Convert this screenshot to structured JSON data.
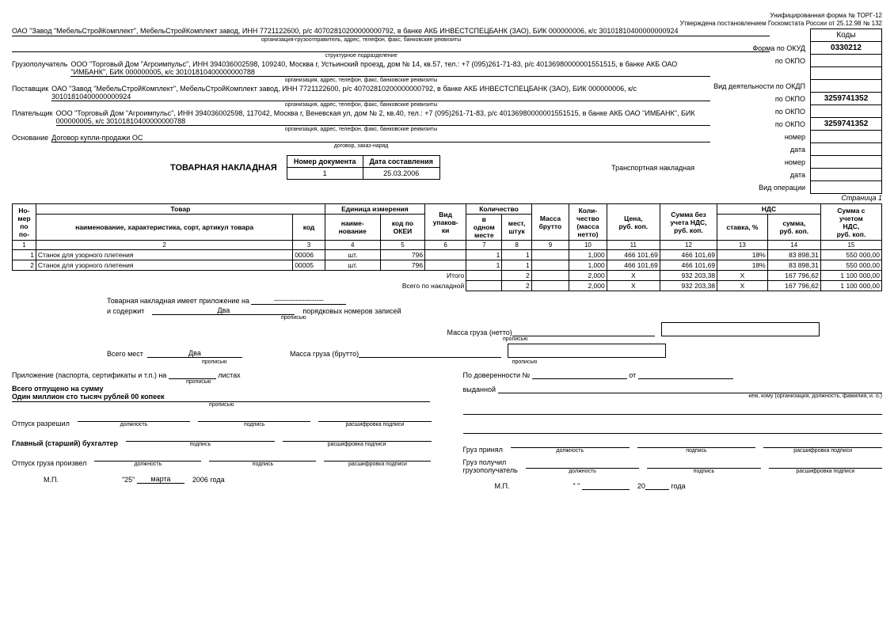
{
  "top_notes": {
    "line1": "Унифицированная форма № ТОРГ-12",
    "line2": "Утверждена постановлением Госкомстата России от 25.12.98 № 132"
  },
  "codes": {
    "header": "Коды",
    "okud_label": "Форма по ОКУД",
    "okud": "0330212",
    "okpo1_label": "по ОКПО",
    "okpo1": "",
    "okdp_label": "Вид деятельности по ОКДП",
    "okdp": "",
    "okpo2_label": "по ОКПО",
    "okpo2": "3259741352",
    "okpo3_label": "по ОКПО",
    "okpo3": "",
    "okpo4_label": "по ОКПО",
    "okpo4": "3259741352",
    "nomer_label": "номер",
    "data_label": "дата",
    "vid_op_label": "Вид операции"
  },
  "sender": {
    "value": "ОАО \"Завод \"МебельСтройКомплект\", МебельСтройКомплект завод, ИНН 7721122600, р/с 40702810200000000792, в банке АКБ ИНВЕСТСПЕЦБАНК (ЗАО), БИК 000000006, к/с 30101810400000000924",
    "sub": "организация-грузоотправитель, адрес, телефон, факс, банковские реквизиты"
  },
  "struct_unit_sub": "структурное подразделение",
  "consignee": {
    "label": "Грузополучатель",
    "value": "ООО \"Торговый Дом \"Агроимпульс\", ИНН 394036002598, 109240, Москва г, Устьинский проезд, дом № 14, кв.57, тел.: +7 (095)261-71-83, р/с 40136980000001551515, в банке АКБ ОАО \"ИМБАНК\", БИК 000000005, к/с 30101810400000000788",
    "sub": "организация, адрес, телефон, факс, банковские реквизиты"
  },
  "supplier": {
    "label": "Поставщик",
    "value": "ОАО \"Завод \"МебельСтройКомплект\", МебельСтройКомплект завод, ИНН 7721122600, р/с 40702810200000000792, в банке АКБ ИНВЕСТСПЕЦБАНК (ЗАО), БИК 000000006, к/с 30101810400000000924",
    "sub": "организация, адрес, телефон, факс, банковские реквизиты"
  },
  "payer": {
    "label": "Плательщик",
    "value": "ООО \"Торговый Дом \"Агроимпульс\", ИНН 394036002598, 117042, Москва г, Веневская ул, дом № 2, кв.40, тел.: +7 (095)261-71-83, р/с 40136980000001551515, в банке АКБ ОАО \"ИМБАНК\", БИК 000000005, к/с 30101810400000000788",
    "sub": "организация, адрес, телефон, факс, банковские реквизиты"
  },
  "basis": {
    "label": "Основание",
    "value": "Договор купли-продажи ОС",
    "sub": "договор, заказ-наряд"
  },
  "doc_title": "ТОВАРНАЯ НАКЛАДНАЯ",
  "doc_num_header": "Номер документа",
  "doc_date_header": "Дата составления",
  "doc_num": "1",
  "doc_date": "25.03.2006",
  "transport_label": "Транспортная накладная",
  "page": "Страница 1",
  "table_headers": {
    "num": "Но-\nмер\nпо\nпо-",
    "tovar": "Товар",
    "name": "наименование, характеристика, сорт, артикул товара",
    "kod": "код",
    "unit": "Единица измерения",
    "unit_name": "наиме-\nнование",
    "okei": "код по\nОКЕИ",
    "vid_upak": "Вид\nупаков-\nки",
    "qty": "Количество",
    "in_one": "в\nодном\nместе",
    "mest": "мест,\nштук",
    "mass_brutto": "Масса\nбрутто",
    "qty_netto": "Коли-\nчество\n(масса\nнетто)",
    "price": "Цена,\nруб. коп.",
    "sum_no_vat": "Сумма без\nучета НДС,\nруб. коп.",
    "vat": "НДС",
    "vat_rate": "ставка, %",
    "vat_sum": "сумма,\nруб. коп.",
    "sum_vat": "Сумма с\nучетом\nНДС,\nруб. коп."
  },
  "col_nums": [
    "1",
    "2",
    "3",
    "4",
    "5",
    "6",
    "7",
    "8",
    "9",
    "10",
    "11",
    "12",
    "13",
    "14",
    "15"
  ],
  "rows": [
    {
      "n": "1",
      "name": "Станок для узорного плетения",
      "kod": "00006",
      "unit": "шт.",
      "okei": "796",
      "vid": "",
      "in_one": "1",
      "mest": "1",
      "brutto": "",
      "netto": "1,000",
      "price": "466 101,69",
      "sum_no_vat": "466 101,69",
      "rate": "18%",
      "vat_sum": "83 898,31",
      "total": "550 000,00"
    },
    {
      "n": "2",
      "name": "Станок для узорного плетения",
      "kod": "00005",
      "unit": "шт.",
      "okei": "796",
      "vid": "",
      "in_one": "1",
      "mest": "1",
      "brutto": "",
      "netto": "1,000",
      "price": "466 101,69",
      "sum_no_vat": "466 101,69",
      "rate": "18%",
      "vat_sum": "83 898,31",
      "total": "550 000,00"
    }
  ],
  "totals": {
    "itogo_label": "Итого",
    "itogo": {
      "mest": "2",
      "netto": "2,000",
      "price": "X",
      "sum_no_vat": "932 203,38",
      "rate": "X",
      "vat_sum": "167 796,62",
      "total": "1 100 000,00"
    },
    "vsego_label": "Всего по накладной",
    "vsego": {
      "mest": "2",
      "netto": "2,000",
      "price": "X",
      "sum_no_vat": "932 203,38",
      "rate": "X",
      "vat_sum": "167 796,62",
      "total": "1 100 000,00"
    }
  },
  "bottom": {
    "attach_label": "Товарная накладная имеет приложение на",
    "attach_val": "---------------------",
    "contains_label": "и содержит",
    "contains_val": "Два",
    "contains_suffix": "порядковых номеров записей",
    "propis": "прописью",
    "mass_netto": "Масса груза (нетто)",
    "mass_brutto": "Масса груза (брутто)",
    "vsego_mest_label": "Всего мест",
    "vsego_mest_val": "Два",
    "app_label": "Приложение (паспорта, сертификаты и т.п.) на",
    "app_suffix": "листах",
    "total_label": "Всего отпущено на сумму",
    "total_words": "Один миллион сто тысяч рублей 00 копеек",
    "release_allowed": "Отпуск разрешил",
    "chief_acc": "Главный (старший) бухгалтер",
    "release_done": "Отпуск груза произвел",
    "dolzhnost": "должность",
    "podpis": "подпись",
    "rasshifrovka": "расшифровка подписи",
    "mp": "М.П.",
    "date_day": "\"25\"",
    "date_month": "марта",
    "date_year": "2006",
    "year_suffix": "года",
    "dov_label": "По доверенности №",
    "ot_label": "от",
    "issued_label": "выданной",
    "issued_sub": "кем, кому (организация, должность, фамилия, и. о.)",
    "gruz_prinyal": "Груз принял",
    "gruz_poluchil": "Груз получил\nгрузополучатель",
    "date_blank": "\"      \"",
    "year_blank": "20",
    "goda": "года"
  }
}
